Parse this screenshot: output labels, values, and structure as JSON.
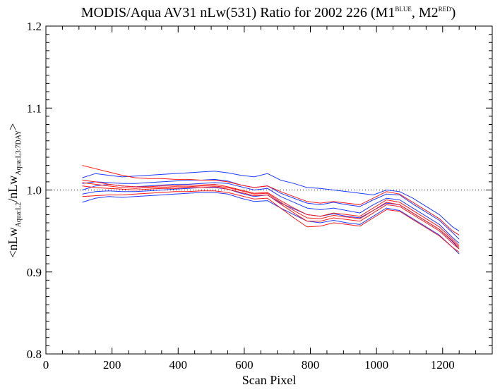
{
  "chart_data": {
    "type": "line",
    "title": {
      "main": "MODIS/Aqua AV31 nLw(531) Ratio for 2002 226 (M1",
      "sup1": "BLUE",
      "mid": ", M2",
      "sup2": "RED",
      "end": ")"
    },
    "xlabel": "Scan Pixel",
    "ylabel": {
      "p1": "<nLw",
      "s1": "Aqua:L2",
      "p2": "/nLw",
      "s2": "Aqua:L3:7DAY",
      "p3": ">"
    },
    "xlim": [
      0,
      1350
    ],
    "ylim": [
      0.8,
      1.2
    ],
    "xticks": [
      0,
      200,
      400,
      600,
      800,
      1000,
      1200
    ],
    "yticks": [
      0.8,
      0.9,
      1.0,
      1.1,
      1.2
    ],
    "ytick_labels": [
      "0.8",
      "0.9",
      "1.0",
      "1.1",
      "1.2"
    ],
    "reference_line": 1.0,
    "colors": {
      "M1": "#1f3cff",
      "M2": "#ff1a1a"
    },
    "x": [
      110,
      150,
      190,
      230,
      270,
      310,
      350,
      390,
      430,
      470,
      510,
      550,
      590,
      630,
      670,
      710,
      750,
      790,
      830,
      870,
      910,
      950,
      990,
      1030,
      1070,
      1110,
      1150,
      1190,
      1230,
      1250
    ],
    "series": [
      {
        "group": "M1",
        "values": [
          1.015,
          1.02,
          1.018,
          1.016,
          1.017,
          1.018,
          1.019,
          1.02,
          1.021,
          1.022,
          1.023,
          1.021,
          1.018,
          1.016,
          1.02,
          1.012,
          1.008,
          1.003,
          1.002,
          1.0,
          0.998,
          0.996,
          0.994,
          1.0,
          0.998,
          0.99,
          0.98,
          0.97,
          0.955,
          0.95
        ]
      },
      {
        "group": "M1",
        "values": [
          1.0,
          1.005,
          1.007,
          1.005,
          1.004,
          1.005,
          1.006,
          1.007,
          1.007,
          1.008,
          1.009,
          1.008,
          1.004,
          1.0,
          1.002,
          0.992,
          0.985,
          0.978,
          0.976,
          0.978,
          0.975,
          0.972,
          0.982,
          0.99,
          0.988,
          0.978,
          0.968,
          0.958,
          0.942,
          0.935
        ]
      },
      {
        "group": "M1",
        "values": [
          0.985,
          0.99,
          0.992,
          0.991,
          0.992,
          0.993,
          0.994,
          0.995,
          0.996,
          0.997,
          0.997,
          0.995,
          0.99,
          0.986,
          0.987,
          0.978,
          0.97,
          0.962,
          0.96,
          0.963,
          0.96,
          0.958,
          0.968,
          0.978,
          0.975,
          0.965,
          0.955,
          0.945,
          0.93,
          0.922
        ]
      },
      {
        "group": "M1",
        "values": [
          1.008,
          1.01,
          1.009,
          1.008,
          1.008,
          1.009,
          1.01,
          1.011,
          1.012,
          1.012,
          1.013,
          1.011,
          1.006,
          1.003,
          1.005,
          0.996,
          0.99,
          0.984,
          0.982,
          0.985,
          0.982,
          0.98,
          0.988,
          0.995,
          0.994,
          0.983,
          0.973,
          0.963,
          0.948,
          0.94
        ]
      },
      {
        "group": "M1",
        "values": [
          0.995,
          0.998,
          0.999,
          0.998,
          0.998,
          0.999,
          1.0,
          1.001,
          1.002,
          1.003,
          1.003,
          1.001,
          0.996,
          0.992,
          0.994,
          0.984,
          0.977,
          0.97,
          0.968,
          0.971,
          0.968,
          0.966,
          0.975,
          0.984,
          0.982,
          0.972,
          0.962,
          0.952,
          0.937,
          0.928
        ]
      },
      {
        "group": "M2",
        "values": [
          1.03,
          1.026,
          1.022,
          1.018,
          1.015,
          1.014,
          1.014,
          1.013,
          1.013,
          1.012,
          1.012,
          1.01,
          1.006,
          1.003,
          1.005,
          0.998,
          0.992,
          0.986,
          0.984,
          0.986,
          0.984,
          0.982,
          0.99,
          0.998,
          0.995,
          0.985,
          0.975,
          0.965,
          0.95,
          0.945
        ]
      },
      {
        "group": "M2",
        "values": [
          1.012,
          1.01,
          1.007,
          1.005,
          1.004,
          1.004,
          1.005,
          1.005,
          1.006,
          1.006,
          1.007,
          1.004,
          1.0,
          0.996,
          0.997,
          0.987,
          0.978,
          0.97,
          0.968,
          0.972,
          0.97,
          0.968,
          0.978,
          0.988,
          0.985,
          0.975,
          0.965,
          0.955,
          0.94,
          0.932
        ]
      },
      {
        "group": "M2",
        "values": [
          1.005,
          1.003,
          1.002,
          1.001,
          1.0,
          1.001,
          1.002,
          1.002,
          1.003,
          1.003,
          1.004,
          1.001,
          0.997,
          0.993,
          0.994,
          0.983,
          0.972,
          0.962,
          0.962,
          0.966,
          0.964,
          0.962,
          0.972,
          0.982,
          0.98,
          0.97,
          0.96,
          0.95,
          0.935,
          0.928
        ]
      },
      {
        "group": "M2",
        "values": [
          0.992,
          0.993,
          0.994,
          0.994,
          0.995,
          0.996,
          0.997,
          0.998,
          0.998,
          0.999,
          0.999,
          0.997,
          0.993,
          0.989,
          0.99,
          0.978,
          0.966,
          0.955,
          0.956,
          0.96,
          0.958,
          0.956,
          0.966,
          0.976,
          0.974,
          0.964,
          0.954,
          0.944,
          0.93,
          0.924
        ]
      },
      {
        "group": "M2",
        "values": [
          1.009,
          1.007,
          1.005,
          1.003,
          1.002,
          1.003,
          1.003,
          1.004,
          1.004,
          1.005,
          1.005,
          1.003,
          0.999,
          0.995,
          0.996,
          0.985,
          0.975,
          0.966,
          0.965,
          0.969,
          0.967,
          0.965,
          0.975,
          0.985,
          0.982,
          0.972,
          0.962,
          0.952,
          0.938,
          0.93
        ]
      }
    ]
  }
}
